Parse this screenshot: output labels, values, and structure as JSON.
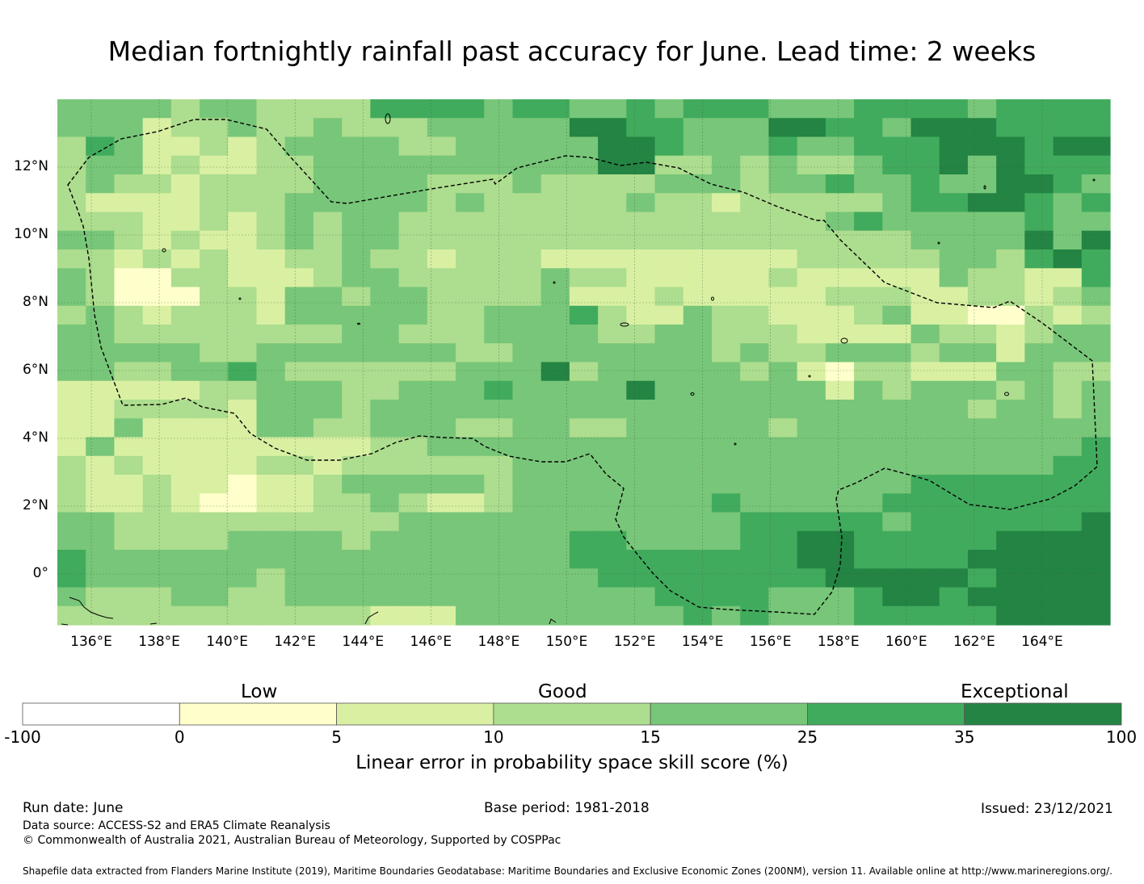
{
  "title": "Median fortnightly rainfall past accuracy for June. Lead time: 2 weeks",
  "map": {
    "lon_range": [
      135,
      166
    ],
    "lat_range": [
      -1.5,
      14
    ],
    "lon_ticks": [
      "136°E",
      "138°E",
      "140°E",
      "142°E",
      "144°E",
      "146°E",
      "148°E",
      "150°E",
      "152°E",
      "154°E",
      "156°E",
      "158°E",
      "160°E",
      "162°E",
      "164°E"
    ],
    "lat_ticks": [
      "12°N",
      "10°N",
      "8°N",
      "6°N",
      "4°N",
      "2°N",
      "0°"
    ],
    "grid": true,
    "cell_size_deg": 0.83,
    "eez_boundary": "dashed"
  },
  "colorbar": {
    "categories": [
      "Low",
      "Good",
      "Exceptional"
    ],
    "bins": [
      {
        "from": "-100",
        "to": "0",
        "color": "#ffffff"
      },
      {
        "from": "0",
        "to": "5",
        "color": "#ffffcc"
      },
      {
        "from": "5",
        "to": "10",
        "color": "#d9f0a3"
      },
      {
        "from": "10",
        "to": "15",
        "color": "#addd8e"
      },
      {
        "from": "15",
        "to": "25",
        "color": "#78c679"
      },
      {
        "from": "25",
        "to": "35",
        "color": "#41ab5d"
      },
      {
        "from": "35",
        "to": "100",
        "color": "#238443"
      }
    ],
    "tick_labels": [
      "-100",
      "0",
      "5",
      "10",
      "15",
      "25",
      "35",
      "100"
    ],
    "label": "Linear error in probability space skill score (%)"
  },
  "footer": {
    "run_date": "Run date: June",
    "base_period": "Base period: 1981-2018",
    "issued": "Issued: 23/12/2021",
    "data_source": "Data source: ACCESS-S2 and ERA5 Climate Reanalysis",
    "copyright": "© Commonwealth of Australia 2021, Australian Bureau of Meteorology, Supported by COSPPac",
    "shapefile": "Shapefile data extracted from Flanders Marine Institute (2019), Maritime Boundaries Geodatabase: Maritime Boundaries and Exclusive Economic Zones (200NM), version 11. Available online at http://www.marineregions.org/."
  }
}
